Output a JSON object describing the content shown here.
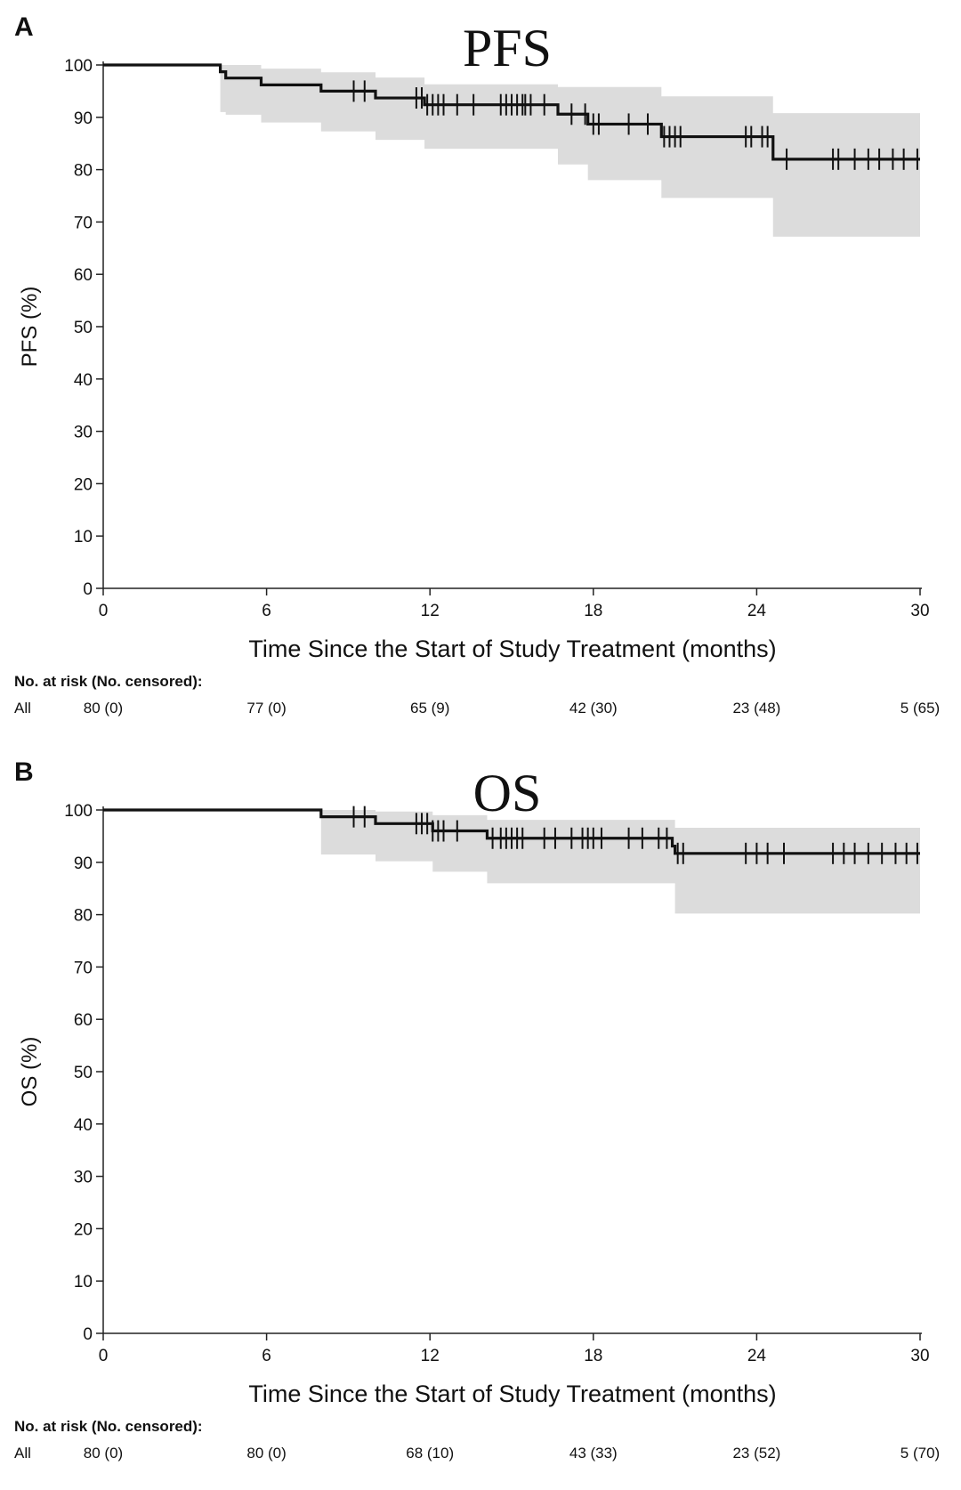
{
  "panels": [
    {
      "letter": "A",
      "title": "PFS",
      "risk_header": "No. at risk (No. censored):",
      "risk_row_label": "All",
      "risk_values": [
        "80 (0)",
        "77 (0)",
        "65 (9)",
        "42 (30)",
        "23 (48)",
        "5 (65)"
      ]
    },
    {
      "letter": "B",
      "title": "OS",
      "risk_header": "No. at risk (No. censored):",
      "risk_row_label": "All",
      "risk_values": [
        "80 (0)",
        "80 (0)",
        "68 (10)",
        "43 (33)",
        "23 (52)",
        "5 (70)"
      ]
    }
  ],
  "chart_data": [
    {
      "type": "line",
      "title": "PFS",
      "xlabel": "Time Since the Start of Study Treatment (months)",
      "ylabel": "PFS (%)",
      "xlim": [
        0,
        30
      ],
      "ylim": [
        0,
        100
      ],
      "xticks": [
        0,
        6,
        12,
        18,
        24,
        30
      ],
      "yticks": [
        0,
        10,
        20,
        30,
        40,
        50,
        60,
        70,
        80,
        90,
        100
      ],
      "grid": false,
      "line_color": "#111111",
      "ci_color": "#dcdcdc",
      "steps": [
        {
          "x": 0,
          "y": 100
        },
        {
          "x": 4.3,
          "y": 98.7
        },
        {
          "x": 4.5,
          "y": 97.5
        },
        {
          "x": 5.8,
          "y": 96.2
        },
        {
          "x": 8.0,
          "y": 95.0
        },
        {
          "x": 10.0,
          "y": 93.7
        },
        {
          "x": 11.8,
          "y": 92.4
        },
        {
          "x": 16.7,
          "y": 90.6
        },
        {
          "x": 17.8,
          "y": 88.7
        },
        {
          "x": 20.5,
          "y": 86.3
        },
        {
          "x": 24.6,
          "y": 82.0
        }
      ],
      "x_end": 30,
      "ci_upper": [
        {
          "x": 4.3,
          "y": 100
        },
        {
          "x": 5.8,
          "y": 99.3
        },
        {
          "x": 8.0,
          "y": 98.6
        },
        {
          "x": 10.0,
          "y": 97.6
        },
        {
          "x": 11.8,
          "y": 96.3
        },
        {
          "x": 16.7,
          "y": 95.8
        },
        {
          "x": 20.5,
          "y": 94.0
        },
        {
          "x": 24.6,
          "y": 90.8
        }
      ],
      "ci_lower": [
        {
          "x": 4.3,
          "y": 91.0
        },
        {
          "x": 4.5,
          "y": 90.5
        },
        {
          "x": 5.8,
          "y": 89.0
        },
        {
          "x": 8.0,
          "y": 87.3
        },
        {
          "x": 10.0,
          "y": 85.7
        },
        {
          "x": 11.8,
          "y": 84.0
        },
        {
          "x": 16.7,
          "y": 81.0
        },
        {
          "x": 17.8,
          "y": 78.0
        },
        {
          "x": 20.5,
          "y": 74.6
        },
        {
          "x": 24.6,
          "y": 67.2
        }
      ],
      "censor_x": [
        9.2,
        9.6,
        11.5,
        11.7,
        11.9,
        12.1,
        12.3,
        12.5,
        13.0,
        13.6,
        14.6,
        14.8,
        15.0,
        15.2,
        15.4,
        15.5,
        15.7,
        16.2,
        17.2,
        17.7,
        18.0,
        18.2,
        19.3,
        20.0,
        20.6,
        20.8,
        21.0,
        21.2,
        23.6,
        23.8,
        24.2,
        24.4,
        25.1,
        26.8,
        27.0,
        27.6,
        28.1,
        28.5,
        29.0,
        29.4,
        29.9
      ]
    },
    {
      "type": "line",
      "title": "OS",
      "xlabel": "Time Since the Start of Study Treatment (months)",
      "ylabel": "OS (%)",
      "xlim": [
        0,
        30
      ],
      "ylim": [
        0,
        100
      ],
      "xticks": [
        0,
        6,
        12,
        18,
        24,
        30
      ],
      "yticks": [
        0,
        10,
        20,
        30,
        40,
        50,
        60,
        70,
        80,
        90,
        100
      ],
      "grid": false,
      "line_color": "#111111",
      "ci_color": "#dcdcdc",
      "steps": [
        {
          "x": 0,
          "y": 100
        },
        {
          "x": 8.0,
          "y": 98.7
        },
        {
          "x": 10.0,
          "y": 97.4
        },
        {
          "x": 12.1,
          "y": 96.0
        },
        {
          "x": 14.1,
          "y": 94.6
        },
        {
          "x": 20.9,
          "y": 93.1
        },
        {
          "x": 21.0,
          "y": 91.7
        }
      ],
      "x_end": 30,
      "ci_upper": [
        {
          "x": 8.0,
          "y": 100
        },
        {
          "x": 10.0,
          "y": 99.7
        },
        {
          "x": 12.1,
          "y": 99.0
        },
        {
          "x": 14.1,
          "y": 98.1
        },
        {
          "x": 21.0,
          "y": 96.6
        }
      ],
      "ci_lower": [
        {
          "x": 8.0,
          "y": 91.5
        },
        {
          "x": 10.0,
          "y": 90.2
        },
        {
          "x": 12.1,
          "y": 88.2
        },
        {
          "x": 14.1,
          "y": 86.0
        },
        {
          "x": 21.0,
          "y": 80.2
        }
      ],
      "censor_x": [
        9.2,
        9.6,
        11.5,
        11.7,
        11.9,
        12.1,
        12.3,
        12.5,
        13.0,
        14.3,
        14.6,
        14.8,
        15.0,
        15.2,
        15.4,
        16.2,
        16.6,
        17.2,
        17.6,
        17.8,
        18.0,
        18.3,
        19.3,
        19.8,
        20.4,
        20.7,
        21.1,
        21.3,
        23.6,
        24.0,
        24.4,
        25.0,
        26.8,
        27.2,
        27.6,
        28.1,
        28.6,
        29.1,
        29.5,
        29.9
      ]
    }
  ]
}
